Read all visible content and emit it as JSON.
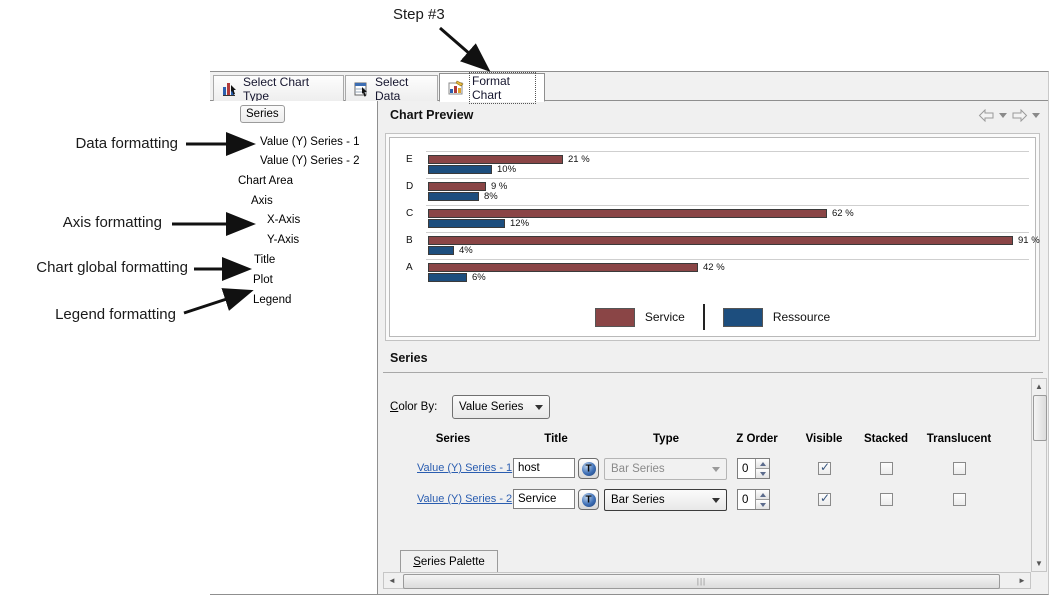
{
  "annotations": {
    "step": "Step #3",
    "data_formatting": "Data formatting",
    "axis_formatting": "Axis formatting",
    "chart_global_formatting": "Chart global formatting",
    "legend_formatting": "Legend formatting"
  },
  "tabs": [
    {
      "label": "Select Chart Type"
    },
    {
      "label": "Select Data"
    },
    {
      "label": "Format Chart",
      "active": true
    }
  ],
  "tree": {
    "items": [
      {
        "label": "Series",
        "selected": true
      },
      {
        "label": "Value (Y) Series - 1"
      },
      {
        "label": "Value (Y) Series - 2"
      },
      {
        "label": "Chart Area"
      },
      {
        "label": "Axis"
      },
      {
        "label": "X-Axis"
      },
      {
        "label": "Y-Axis"
      },
      {
        "label": "Title"
      },
      {
        "label": "Plot"
      },
      {
        "label": "Legend"
      }
    ]
  },
  "chart_preview": {
    "title": "Chart Preview"
  },
  "chart_data": {
    "type": "bar",
    "orientation": "horizontal",
    "categories": [
      "E",
      "D",
      "C",
      "B",
      "A"
    ],
    "series": [
      {
        "name": "Service",
        "color": "#8a4546",
        "values": [
          21,
          9,
          62,
          91,
          42
        ],
        "labels": [
          "21 %",
          "9 %",
          "62 %",
          "91 %",
          "42 %"
        ]
      },
      {
        "name": "Ressource",
        "color": "#1d4e7e",
        "values": [
          10,
          8,
          12,
          4,
          6
        ],
        "labels": [
          "10%",
          "8%",
          "12%",
          "4%",
          "6%"
        ]
      }
    ],
    "xlim": [
      0,
      100
    ],
    "value_unit": "%",
    "legend_position": "bottom",
    "grid": true
  },
  "series_section": {
    "title": "Series",
    "color_by": {
      "mnemonic": "C",
      "rest": "olor By:"
    },
    "color_by_value": "Value Series",
    "columns": [
      "Series",
      "Title",
      "Type",
      "Z Order",
      "Visible",
      "Stacked",
      "Translucent"
    ],
    "rows": [
      {
        "series": "Value (Y) Series - 1",
        "title": "host",
        "type": "Bar Series",
        "type_enabled": false,
        "z_order": "0",
        "visible": true,
        "stacked": false,
        "translucent": false
      },
      {
        "series": "Value (Y) Series - 2",
        "title": "Service",
        "type": "Bar Series",
        "type_enabled": true,
        "z_order": "0",
        "visible": true,
        "stacked": false,
        "translucent": false
      }
    ],
    "palette_tab": {
      "mnemonic": "S",
      "rest": "eries Palette"
    }
  },
  "colors": {
    "service": "#8a4546",
    "ressource": "#1d4e7e",
    "link": "#2a5db0"
  }
}
